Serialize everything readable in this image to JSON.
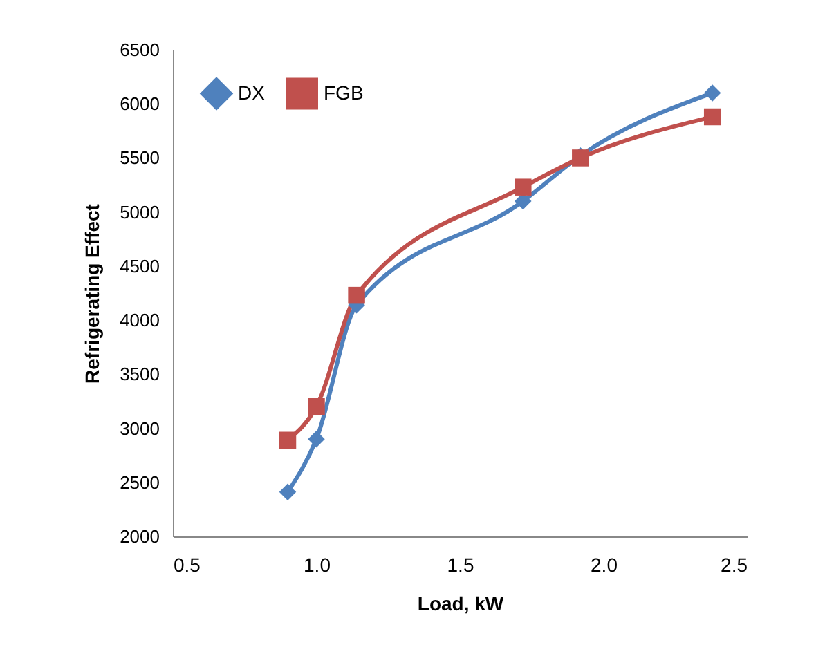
{
  "chart_data": {
    "type": "line",
    "xlabel": "Load, kW",
    "ylabel": "Refrigerating Effect",
    "xlim": [
      0.5,
      2.5
    ],
    "xticks": [
      {
        "value": 0.5,
        "label": "0.5"
      },
      {
        "value": 1,
        "label": "1.0"
      },
      {
        "value": 1.5,
        "label": "1.5"
      },
      {
        "value": 2,
        "label": "2.0"
      },
      {
        "value": 2.5,
        "label": "2.5"
      }
    ],
    "ylim": [
      2000,
      6500
    ],
    "yticks": [
      2000,
      2500,
      3000,
      3500,
      4000,
      4500,
      5000,
      5500,
      6000,
      6500
    ],
    "grid": false,
    "legend": "top left",
    "series": [
      {
        "name": "DX",
        "color": "#4f81bd",
        "marker": "diamond",
        "x": [
          0.9,
          1.0,
          1.14,
          1.72,
          1.92,
          2.38
        ],
        "values": [
          2410,
          2900,
          4140,
          5100,
          5520,
          6100
        ]
      },
      {
        "name": "FGB",
        "color": "#c0504d",
        "marker": "square",
        "x": [
          0.9,
          1.0,
          1.14,
          1.72,
          1.92,
          2.38
        ],
        "values": [
          2890,
          3200,
          4230,
          5230,
          5500,
          5880
        ]
      }
    ]
  }
}
